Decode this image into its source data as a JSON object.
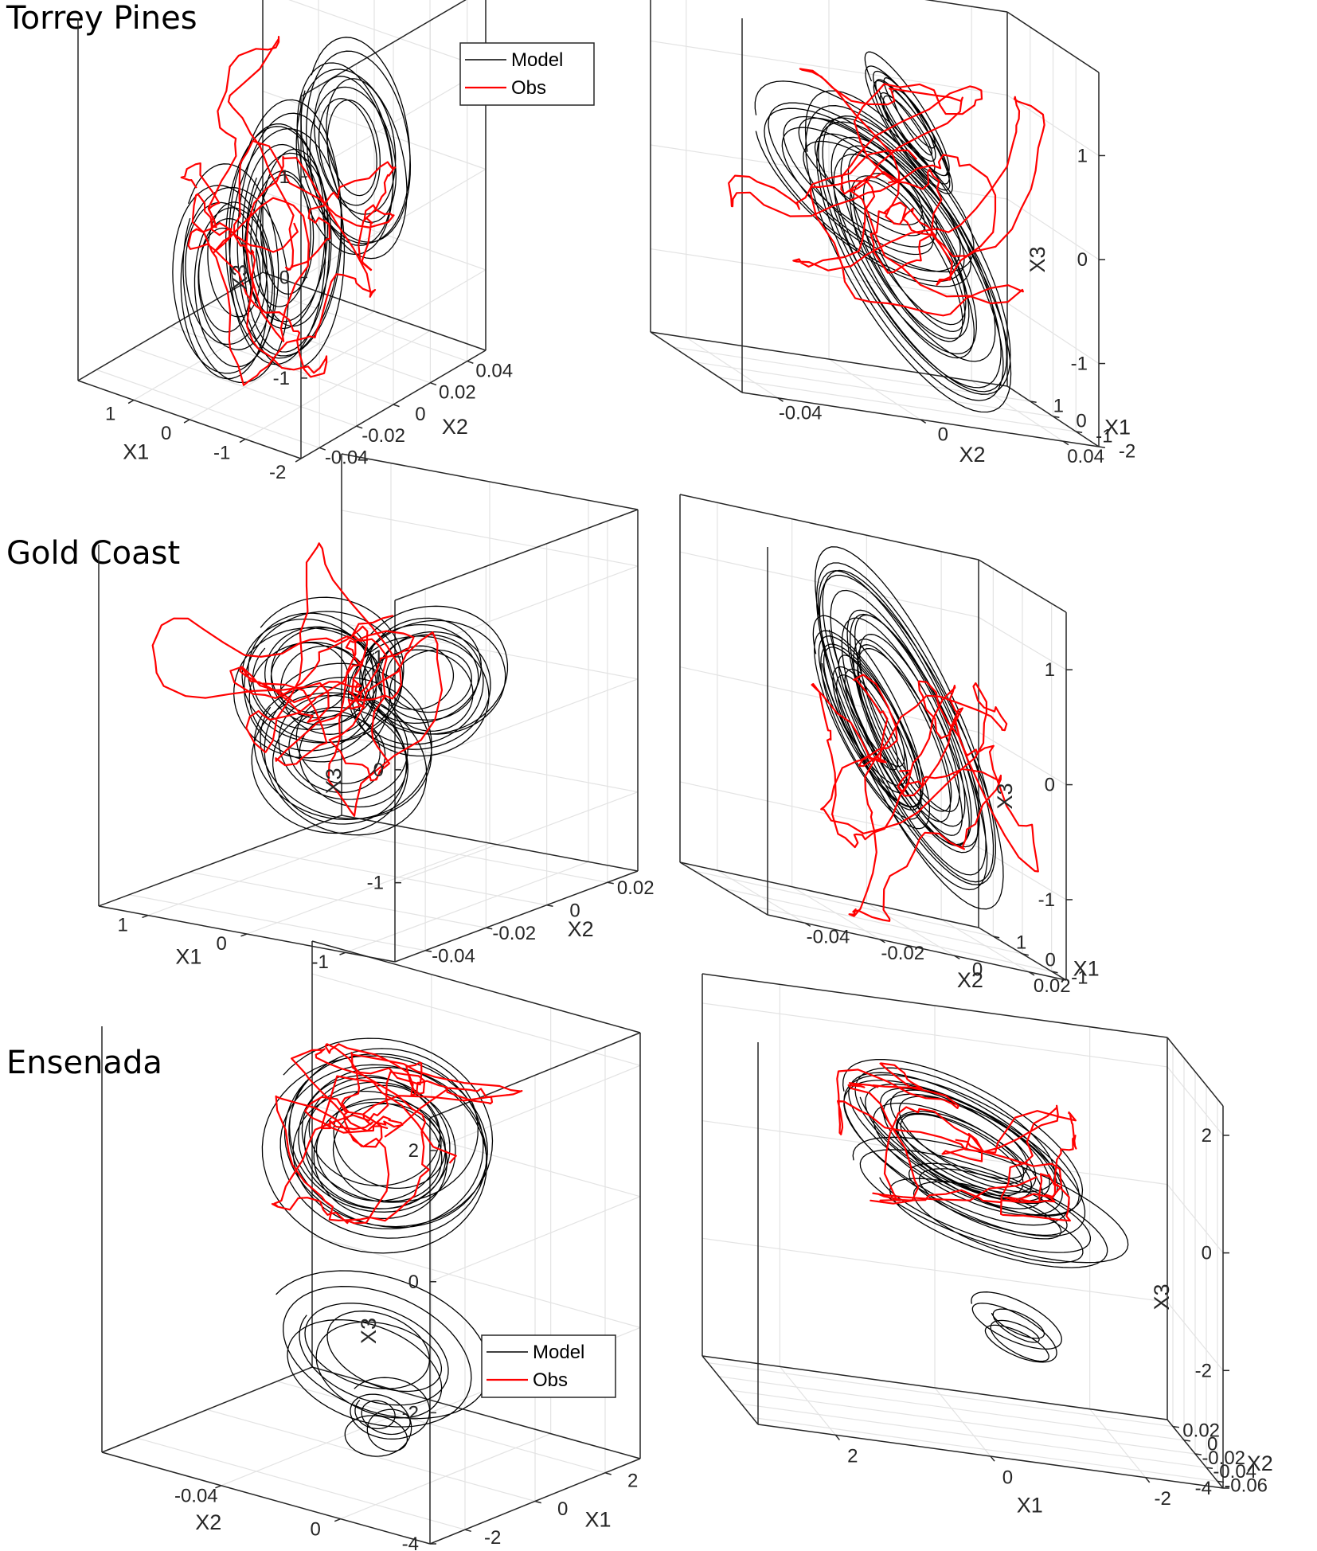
{
  "colors": {
    "model": "#000000",
    "obs": "#ff0000",
    "grid": "#e3e3e3",
    "axis": "#262626"
  },
  "sections": [
    {
      "title": "Torrey Pines"
    },
    {
      "title": "Gold Coast"
    },
    {
      "title": "Ensenada"
    }
  ],
  "legend": {
    "model_label": "Model",
    "obs_label": "Obs"
  },
  "chart_data": [
    {
      "type": "line",
      "section": "Torrey Pines",
      "view": "left",
      "xlabel": "X1",
      "ylabel": "X2",
      "zlabel": "X3",
      "xlim": [
        -2,
        2
      ],
      "ylim": [
        -0.05,
        0.05
      ],
      "zlim": [
        -1.8,
        1.8
      ],
      "xticks": [
        -2,
        -1,
        0,
        1
      ],
      "xtick_labels": [
        "-2",
        "-1",
        "0",
        "1"
      ],
      "yticks": [
        -0.04,
        -0.02,
        0,
        0.02,
        0.04
      ],
      "ytick_labels": [
        "-0.04",
        "-0.02",
        "0",
        "0.02",
        "0.04"
      ],
      "zticks": [
        -1,
        0,
        1
      ],
      "ztick_labels": [
        "-1",
        "0",
        "1"
      ],
      "legend": "top-right",
      "grid": true,
      "series": [
        {
          "name": "Model",
          "kind": "chaotic attractor trajectory (many loops)"
        },
        {
          "name": "Obs",
          "kind": "observed embedded trajectory"
        }
      ]
    },
    {
      "type": "line",
      "section": "Torrey Pines",
      "view": "right",
      "xlabel": "X2",
      "ylabel": "X1",
      "zlabel": "X3",
      "xlim": [
        0.05,
        -0.05
      ],
      "ylim": [
        -2,
        2
      ],
      "zlim": [
        -1.8,
        1.8
      ],
      "xticks": [
        0.04,
        0,
        -0.04
      ],
      "xtick_labels": [
        "0.04",
        "0",
        "-0.04"
      ],
      "yticks": [
        -2,
        -1,
        0,
        1
      ],
      "ytick_labels": [
        "-2",
        "-1",
        "0",
        "1"
      ],
      "zticks": [
        -1,
        0,
        1
      ],
      "ztick_labels": [
        "-1",
        "0",
        "1"
      ],
      "grid": true,
      "series": [
        {
          "name": "Model",
          "kind": "chaotic attractor trajectory (many loops)"
        },
        {
          "name": "Obs",
          "kind": "observed embedded trajectory"
        }
      ]
    },
    {
      "type": "line",
      "section": "Gold Coast",
      "view": "left",
      "xlabel": "X1",
      "ylabel": "X2",
      "zlabel": "X3",
      "xlim": [
        -1.5,
        1.5
      ],
      "ylim": [
        -0.05,
        0.03
      ],
      "zlim": [
        -1.7,
        1.5
      ],
      "xticks": [
        -1,
        0,
        1
      ],
      "xtick_labels": [
        "-1",
        "0",
        "1"
      ],
      "yticks": [
        -0.04,
        -0.02,
        0,
        0.02
      ],
      "ytick_labels": [
        "-0.04",
        "-0.02",
        "0",
        "0.02"
      ],
      "zticks": [
        -1,
        0,
        1
      ],
      "ztick_labels": [
        "-1",
        "0",
        "1"
      ],
      "grid": true,
      "series": [
        {
          "name": "Model",
          "kind": "chaotic attractor trajectory (many loops)"
        },
        {
          "name": "Obs",
          "kind": "observed embedded trajectory"
        }
      ]
    },
    {
      "type": "line",
      "section": "Gold Coast",
      "view": "right",
      "xlabel": "X2",
      "ylabel": "X1",
      "zlabel": "X3",
      "xlim": [
        0.03,
        -0.05
      ],
      "ylim": [
        -1.5,
        1.5
      ],
      "zlim": [
        -1.7,
        1.5
      ],
      "xticks": [
        0.02,
        0,
        -0.02,
        -0.04
      ],
      "xtick_labels": [
        "0.02",
        "0",
        "-0.02",
        "-0.04"
      ],
      "yticks": [
        -1,
        0,
        1
      ],
      "ytick_labels": [
        "-1",
        "0",
        "1"
      ],
      "zticks": [
        -1,
        0,
        1
      ],
      "ztick_labels": [
        "-1",
        "0",
        "1"
      ],
      "grid": true,
      "series": [
        {
          "name": "Model",
          "kind": "chaotic attractor trajectory (many loops)"
        },
        {
          "name": "Obs",
          "kind": "observed embedded trajectory"
        }
      ]
    },
    {
      "type": "line",
      "section": "Ensenada",
      "view": "left",
      "xlabel": "X2",
      "ylabel": "X1",
      "zlabel": "X3",
      "xlim": [
        0.03,
        -0.08
      ],
      "ylim": [
        -3,
        3
      ],
      "zlim": [
        -4,
        2.5
      ],
      "xticks": [
        0,
        -0.04
      ],
      "xtick_labels": [
        "0",
        "-0.04"
      ],
      "yticks": [
        -2,
        0,
        2
      ],
      "ytick_labels": [
        "-2",
        "0",
        "2"
      ],
      "zticks": [
        -4,
        -2,
        0,
        2
      ],
      "ztick_labels": [
        "-4",
        "-2",
        "0",
        "2"
      ],
      "legend": "bottom-right",
      "grid": true,
      "series": [
        {
          "name": "Model",
          "kind": "chaotic attractor trajectory with decaying spiral"
        },
        {
          "name": "Obs",
          "kind": "observed embedded trajectory"
        }
      ]
    },
    {
      "type": "line",
      "section": "Ensenada",
      "view": "right",
      "xlabel": "X1",
      "ylabel": "X2",
      "zlabel": "X3",
      "xlim": [
        -3,
        3
      ],
      "ylim": [
        -0.07,
        0.03
      ],
      "zlim": [
        -4,
        2.5
      ],
      "xticks": [
        -2,
        0,
        2
      ],
      "xtick_labels": [
        "-2",
        "0",
        "2"
      ],
      "yticks": [
        -0.06,
        -0.04,
        -0.02,
        0,
        0.02
      ],
      "ytick_labels": [
        "-0.06",
        "-0.04",
        "-0.02",
        "0",
        "0.02"
      ],
      "zticks": [
        -4,
        -2,
        0,
        2
      ],
      "ztick_labels": [
        "-4",
        "-2",
        "0",
        "2"
      ],
      "grid": true,
      "series": [
        {
          "name": "Model",
          "kind": "chaotic attractor trajectory with decaying spiral"
        },
        {
          "name": "Obs",
          "kind": "observed embedded trajectory"
        }
      ]
    }
  ]
}
